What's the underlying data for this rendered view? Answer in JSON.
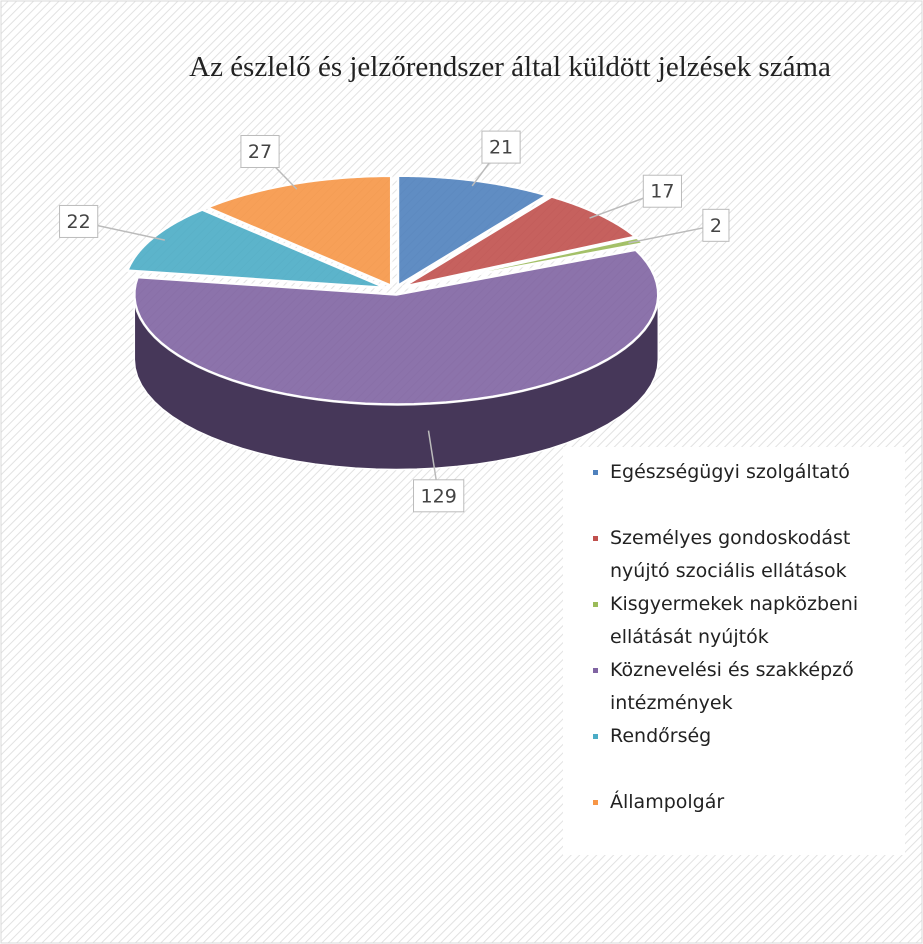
{
  "chart_data": {
    "type": "pie3d",
    "title": "Az észlelő és jelzőrendszer által küldött jelzések száma",
    "categories": [
      "Egészségügyi szolgáltató",
      "Személyes gondoskodást nyújtó szociális ellátások",
      "Kisgyermekek napközbeni ellátását nyújtók",
      "Köznevelési és szakképző intézmények",
      "Rendőrség",
      "Állampolgár"
    ],
    "values": [
      21,
      17,
      2,
      129,
      22,
      27
    ],
    "colors": [
      "#4f81bd",
      "#c0504d",
      "#9bbb59",
      "#8064a2",
      "#4bacc6",
      "#f79646"
    ],
    "legend": "right"
  }
}
